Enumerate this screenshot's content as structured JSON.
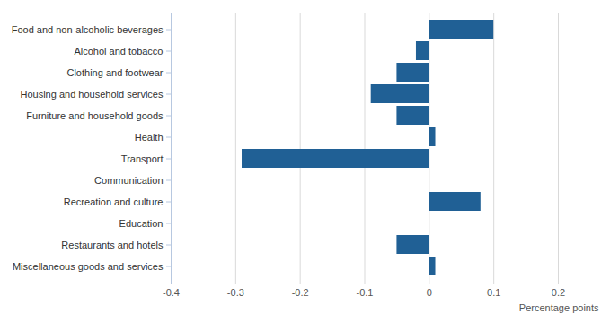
{
  "chart_data": {
    "type": "bar",
    "orientation": "horizontal",
    "categories": [
      "Food and non-alcoholic beverages",
      "Alcohol and tobacco",
      "Clothing and footwear",
      "Housing and household services",
      "Furniture and household goods",
      "Health",
      "Transport",
      "Communication",
      "Recreation and culture",
      "Education",
      "Restaurants and hotels",
      "Miscellaneous goods and services"
    ],
    "values": [
      0.1,
      -0.02,
      -0.05,
      -0.09,
      -0.05,
      0.01,
      -0.29,
      0,
      0.08,
      0,
      -0.05,
      0.01
    ],
    "color": "#206095",
    "x_label": "Percentage points",
    "xlim": [
      -0.4,
      0.2
    ],
    "xticks": [
      -0.4,
      -0.3,
      -0.2,
      -0.1,
      0,
      0.1,
      0.2
    ],
    "grid": true
  }
}
